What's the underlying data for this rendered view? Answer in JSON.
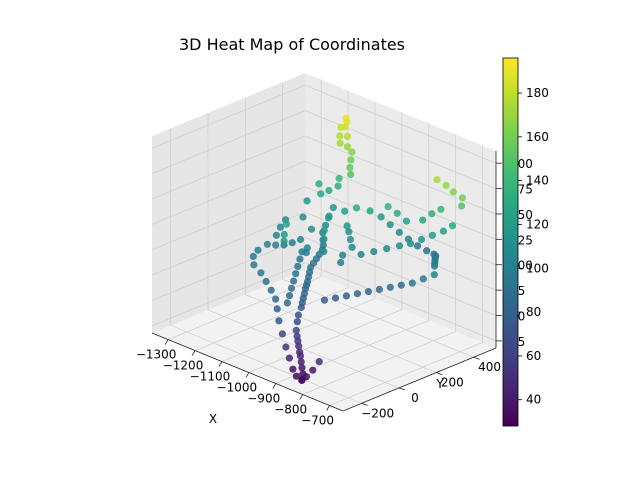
{
  "chart_data": {
    "type": "scatter",
    "projection": "3d",
    "title": "3D Heat Map of Coordinates",
    "xlabel": "X",
    "ylabel": "Y",
    "zlabel": "",
    "xlim": [
      -1360,
      -650
    ],
    "ylim": [
      -300,
      520
    ],
    "zlim": [
      18,
      212
    ],
    "xticks": [
      -1300,
      -1200,
      -1100,
      -1000,
      -900,
      -800,
      -700
    ],
    "yticks": [
      -200,
      0,
      200,
      400
    ],
    "zticks": [
      25,
      50,
      75,
      100,
      125,
      150,
      175,
      200
    ],
    "colormap": "viridis",
    "color_variable": "z",
    "colorbar": {
      "min": 28,
      "max": 196,
      "ticks": [
        40,
        60,
        80,
        100,
        120,
        140,
        160,
        180
      ]
    },
    "grid": true,
    "points": [
      [
        -1180,
        480,
        190
      ],
      [
        -1170,
        470,
        188
      ],
      [
        -1165,
        455,
        185
      ],
      [
        -1185,
        460,
        182
      ],
      [
        -1150,
        445,
        178
      ],
      [
        -1140,
        430,
        170
      ],
      [
        -1130,
        440,
        165
      ],
      [
        -1120,
        420,
        160
      ],
      [
        -1110,
        400,
        155
      ],
      [
        -1100,
        390,
        150
      ],
      [
        -1160,
        420,
        172
      ],
      [
        -1175,
        440,
        176
      ],
      [
        -1150,
        400,
        140
      ],
      [
        -1140,
        380,
        135
      ],
      [
        -1160,
        360,
        130
      ],
      [
        -1170,
        330,
        128
      ],
      [
        -1130,
        340,
        118
      ],
      [
        -1120,
        300,
        112
      ],
      [
        -1110,
        270,
        108
      ],
      [
        -1100,
        240,
        104
      ],
      [
        -1085,
        220,
        100
      ],
      [
        -1070,
        200,
        98
      ],
      [
        -1060,
        180,
        96
      ],
      [
        -1050,
        150,
        95
      ],
      [
        -1040,
        120,
        94
      ],
      [
        -1030,
        90,
        93
      ],
      [
        -1020,
        60,
        92
      ],
      [
        -1010,
        40,
        90
      ],
      [
        -1000,
        20,
        88
      ],
      [
        -990,
        0,
        86
      ],
      [
        -980,
        -20,
        85
      ],
      [
        -970,
        -40,
        84
      ],
      [
        -960,
        -60,
        82
      ],
      [
        -950,
        -80,
        80
      ],
      [
        -940,
        -100,
        78
      ],
      [
        -930,
        -120,
        76
      ],
      [
        -920,
        -150,
        72
      ],
      [
        -910,
        -170,
        68
      ],
      [
        -900,
        -190,
        62
      ],
      [
        -880,
        -210,
        55
      ],
      [
        -860,
        -230,
        48
      ],
      [
        -840,
        -250,
        42
      ],
      [
        -830,
        -260,
        38
      ],
      [
        -820,
        -270,
        34
      ],
      [
        -815,
        -280,
        30
      ],
      [
        -850,
        -240,
        46
      ],
      [
        -870,
        -220,
        52
      ],
      [
        -890,
        -200,
        58
      ],
      [
        -1080,
        100,
        98
      ],
      [
        -1060,
        60,
        96
      ],
      [
        -1040,
        20,
        94
      ],
      [
        -1020,
        -20,
        92
      ],
      [
        -1000,
        -60,
        90
      ],
      [
        -980,
        -100,
        88
      ],
      [
        -960,
        -140,
        86
      ],
      [
        -940,
        -180,
        84
      ],
      [
        -1120,
        150,
        102
      ],
      [
        -1130,
        120,
        100
      ],
      [
        -1140,
        90,
        99
      ],
      [
        -1150,
        60,
        100
      ],
      [
        -1160,
        30,
        102
      ],
      [
        -1100,
        180,
        112
      ],
      [
        -1090,
        260,
        120
      ],
      [
        -1060,
        300,
        125
      ],
      [
        -1030,
        320,
        130
      ],
      [
        -1000,
        350,
        128
      ],
      [
        -980,
        380,
        122
      ],
      [
        -960,
        400,
        115
      ],
      [
        -940,
        420,
        108
      ],
      [
        -920,
        440,
        102
      ],
      [
        -900,
        460,
        96
      ],
      [
        -880,
        480,
        92
      ],
      [
        -860,
        490,
        90
      ],
      [
        -840,
        470,
        92
      ],
      [
        -820,
        440,
        95
      ],
      [
        -800,
        410,
        98
      ],
      [
        -780,
        380,
        100
      ],
      [
        -760,
        350,
        102
      ],
      [
        -740,
        320,
        104
      ],
      [
        -720,
        290,
        100
      ],
      [
        -740,
        260,
        96
      ],
      [
        -760,
        230,
        92
      ],
      [
        -780,
        200,
        90
      ],
      [
        -800,
        170,
        88
      ],
      [
        -820,
        140,
        86
      ],
      [
        -840,
        110,
        84
      ],
      [
        -860,
        80,
        82
      ],
      [
        -880,
        50,
        80
      ],
      [
        -900,
        20,
        78
      ],
      [
        -920,
        -10,
        76
      ],
      [
        -950,
        120,
        100
      ],
      [
        -970,
        160,
        102
      ],
      [
        -930,
        200,
        104
      ],
      [
        -910,
        240,
        106
      ],
      [
        -890,
        280,
        108
      ],
      [
        -870,
        320,
        110
      ],
      [
        -850,
        350,
        112
      ],
      [
        -830,
        380,
        116
      ],
      [
        -810,
        410,
        120
      ],
      [
        -790,
        440,
        124
      ],
      [
        -770,
        460,
        130
      ],
      [
        -750,
        480,
        150
      ],
      [
        -740,
        470,
        160
      ],
      [
        -760,
        450,
        165
      ],
      [
        -780,
        440,
        170
      ],
      [
        -800,
        420,
        175
      ],
      [
        -820,
        470,
        140
      ],
      [
        -840,
        450,
        135
      ],
      [
        -860,
        430,
        128
      ],
      [
        -900,
        400,
        125
      ],
      [
        -920,
        380,
        132
      ],
      [
        -940,
        360,
        138
      ],
      [
        -1010,
        250,
        114
      ],
      [
        -990,
        230,
        110
      ],
      [
        -970,
        210,
        106
      ],
      [
        -1030,
        270,
        116
      ],
      [
        -1060,
        100,
        104
      ],
      [
        -1050,
        80,
        102
      ],
      [
        -1190,
        350,
        134
      ],
      [
        -1200,
        300,
        120
      ],
      [
        -1180,
        250,
        110
      ],
      [
        -1210,
        200,
        108
      ],
      [
        -1195,
        150,
        106
      ],
      [
        -1175,
        100,
        104
      ],
      [
        -1160,
        -20,
        100
      ],
      [
        -1150,
        -60,
        98
      ],
      [
        -1120,
        -100,
        96
      ],
      [
        -1080,
        -120,
        94
      ],
      [
        -1040,
        -150,
        92
      ],
      [
        -1000,
        -180,
        90
      ],
      [
        -970,
        -200,
        86
      ],
      [
        -950,
        -220,
        80
      ],
      [
        -930,
        -240,
        72
      ],
      [
        -910,
        -250,
        62
      ],
      [
        -890,
        -260,
        52
      ],
      [
        -870,
        -270,
        44
      ],
      [
        -850,
        -280,
        36
      ],
      [
        -830,
        -290,
        32
      ],
      [
        -810,
        -290,
        30
      ],
      [
        -800,
        -280,
        34
      ],
      [
        -790,
        -260,
        40
      ],
      [
        -780,
        -240,
        48
      ],
      [
        -1090,
        20,
        120
      ],
      [
        -1070,
        -10,
        118
      ],
      [
        -1110,
        60,
        125
      ],
      [
        -1025,
        140,
        122
      ],
      [
        -1005,
        110,
        118
      ],
      [
        -985,
        80,
        110
      ]
    ]
  }
}
